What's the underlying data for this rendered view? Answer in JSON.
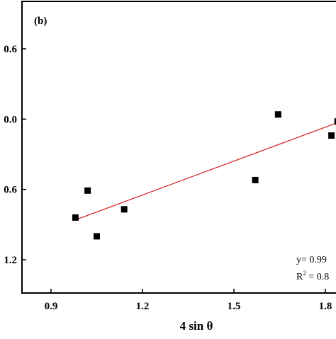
{
  "chart_data": {
    "type": "scatter",
    "panel_label": "(b)",
    "xlabel": "4 sin θ",
    "ylabel": "",
    "xlim": [
      0.8,
      1.85
    ],
    "ylim": [
      -1.5,
      0.9
    ],
    "x_ticks": [
      {
        "value": 0.9,
        "label": "0.9"
      },
      {
        "value": 1.2,
        "label": "1.2"
      },
      {
        "value": 1.5,
        "label": "1.5"
      },
      {
        "value": 1.8,
        "label": "1.8"
      }
    ],
    "y_ticks": [
      {
        "value": 0.6,
        "label": "0.6"
      },
      {
        "value": 0.0,
        "label": "0.0"
      },
      {
        "value": -0.6,
        "label": "0.6"
      },
      {
        "value": -1.2,
        "label": "1.2"
      }
    ],
    "series": [
      {
        "points": [
          {
            "x": 0.98,
            "y": -0.84
          },
          {
            "x": 1.02,
            "y": -0.61
          },
          {
            "x": 1.05,
            "y": -1.0
          },
          {
            "x": 1.14,
            "y": -0.77
          },
          {
            "x": 1.57,
            "y": -0.52
          },
          {
            "x": 1.645,
            "y": 0.04
          },
          {
            "x": 1.82,
            "y": -0.14
          },
          {
            "x": 1.84,
            "y": -0.02
          }
        ],
        "color": "#000000",
        "marker": "square"
      }
    ],
    "fit_line": {
      "color": "#d42020",
      "x_start": 0.98,
      "x_end": 1.84,
      "y_start": -0.86,
      "y_end": -0.03
    },
    "annotation": {
      "equation": "y= 0.99",
      "r2_prefix": "R",
      "r2_sup": "2",
      "r2_value": " = 0.8"
    },
    "grid": false
  }
}
